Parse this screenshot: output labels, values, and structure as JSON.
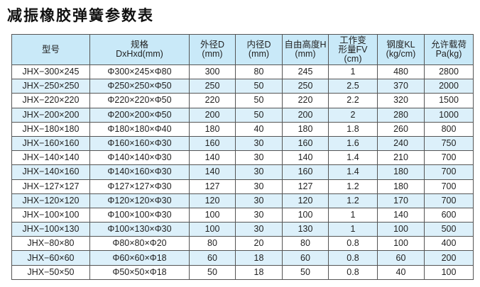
{
  "title": "减振橡胶弹簧参数表",
  "headers": [
    [
      "型号"
    ],
    [
      "规格",
      "DxHxd(mm)"
    ],
    [
      "外径D",
      "(mm)"
    ],
    [
      "内径D",
      "(mm)"
    ],
    [
      "自由高度H",
      "(mm)"
    ],
    [
      "工作变",
      "形量FV",
      "(cm)"
    ],
    [
      "钢度KL",
      "(kg/cm)"
    ],
    [
      "允许载荷",
      "Pa(kg)"
    ]
  ],
  "rows": [
    [
      "JHX−300×245",
      "Φ300×245×Φ80",
      "300",
      "80",
      "245",
      "1",
      "480",
      "2800"
    ],
    [
      "JHX−250×250",
      "Φ250×250×Φ50",
      "250",
      "50",
      "250",
      "2.5",
      "370",
      "2000"
    ],
    [
      "JHX−220×220",
      "Φ220×220×Φ50",
      "220",
      "50",
      "220",
      "2.2",
      "320",
      "1500"
    ],
    [
      "JHX−200×200",
      "Φ200×200×Φ50",
      "200",
      "50",
      "200",
      "2",
      "280",
      "1000"
    ],
    [
      "JHX−180×180",
      "Φ180×180×Φ40",
      "180",
      "40",
      "180",
      "1.8",
      "260",
      "800"
    ],
    [
      "JHX−160×160",
      "Φ160×160×Φ30",
      "160",
      "30",
      "160",
      "1.6",
      "240",
      "750"
    ],
    [
      "JHX−140×140",
      "Φ140×140×Φ30",
      "140",
      "30",
      "140",
      "1.4",
      "210",
      "700"
    ],
    [
      "JHX−140×160",
      "Φ140×160×Φ30",
      "140",
      "30",
      "160",
      "1.4",
      "180",
      "700"
    ],
    [
      "JHX−127×127",
      "Φ127×127×Φ30",
      "127",
      "30",
      "127",
      "1.2",
      "180",
      "700"
    ],
    [
      "JHX−120×120",
      "Φ120×120×Φ30",
      "120",
      "30",
      "120",
      "1.2",
      "170",
      "700"
    ],
    [
      "JHX−100×100",
      "Φ100×100×Φ30",
      "100",
      "30",
      "100",
      "1",
      "140",
      "600"
    ],
    [
      "JHX−100×130",
      "Φ100×130×Φ30",
      "100",
      "30",
      "130",
      "1",
      "100",
      "500"
    ],
    [
      "JHX−80×80",
      "Φ80×80×Φ20",
      "80",
      "20",
      "80",
      "0.8",
      "100",
      "400"
    ],
    [
      "JHX−60×60",
      "Φ60×60×Φ18",
      "60",
      "18",
      "60",
      "0.8",
      "60",
      "200"
    ],
    [
      "JHX−50×50",
      "Φ50×50×Φ18",
      "50",
      "18",
      "50",
      "0.8",
      "40",
      "100"
    ]
  ]
}
